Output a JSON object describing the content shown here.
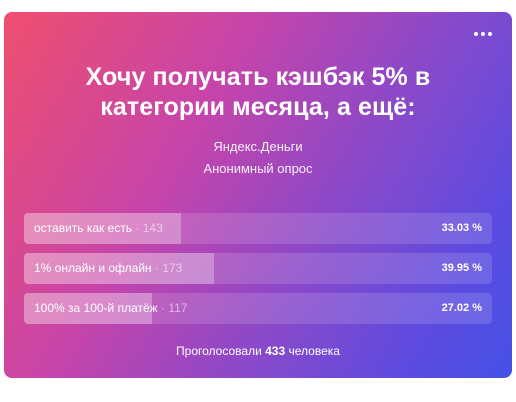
{
  "poll": {
    "question": "Хочу получать кэшбэк 5% в категории месяца, а ещё:",
    "author": "Яндекс.Деньги",
    "type": "Анонимный опрос",
    "answers": [
      {
        "label": "оставить как есть",
        "count": "· 143",
        "percent": "33.03 %",
        "fraction": 0.3303
      },
      {
        "label": "1% онлайн и офлайн",
        "count": "· 173",
        "percent": "39.95 %",
        "fraction": 0.3995
      },
      {
        "label": "100% за 100-й платёж",
        "count": "· 117",
        "percent": "27.02 %",
        "fraction": 0.2702
      }
    ],
    "footer_prefix": "Проголосовали",
    "footer_count": "433",
    "footer_suffix": "человека"
  },
  "icons": {
    "more": "more-horizontal-icon"
  }
}
